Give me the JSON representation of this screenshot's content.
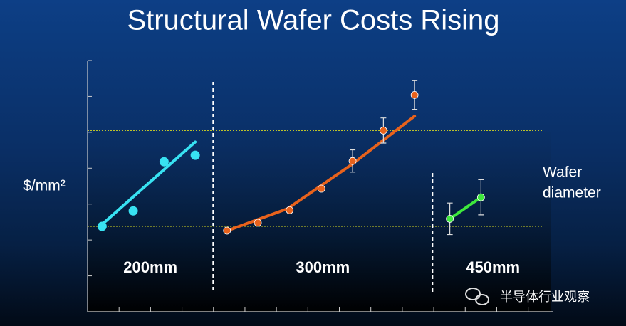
{
  "chart_data": {
    "type": "scatter",
    "title": "Structural Wafer Costs Rising",
    "y_label": "$/mm²",
    "right_label": [
      "Wafer",
      "diameter"
    ],
    "xlim": [
      0,
      14.8
    ],
    "xticks": [
      0,
      1,
      2,
      3,
      4,
      5,
      6,
      7,
      8,
      9,
      10,
      11,
      12,
      13,
      14
    ],
    "ylim": [
      0,
      7
    ],
    "yticks": [
      0,
      1,
      2,
      3,
      4,
      5,
      6,
      7
    ],
    "hlines": {
      "color": "#d8d820",
      "values": [
        5.05,
        2.38
      ]
    },
    "vlines": [
      3.99,
      10.96
    ],
    "series": [
      {
        "name": "200mm",
        "color": "#38e2f2",
        "x": [
          0.46,
          1.45,
          2.43,
          3.42
        ],
        "values": [
          2.38,
          2.81,
          4.18,
          4.36
        ],
        "fit_x": [
          0.39,
          3.42
        ],
        "fit_y": [
          2.38,
          4.73
        ]
      },
      {
        "name": "300mm",
        "color": "#e8621c",
        "x": [
          4.43,
          5.41,
          6.42,
          7.43,
          8.42,
          9.4,
          10.39
        ],
        "values": [
          2.26,
          2.48,
          2.83,
          3.43,
          4.2,
          5.05,
          6.04
        ],
        "errors": [
          null,
          null,
          null,
          null,
          0.31,
          0.35,
          0.4
        ],
        "fit_x": [
          4.38,
          6.35,
          8.42,
          10.39
        ],
        "fit_y": [
          2.24,
          2.87,
          4.12,
          5.45
        ]
      },
      {
        "name": "450mm",
        "color": "#3ee83c",
        "x": [
          11.51,
          12.5
        ],
        "values": [
          2.59,
          3.19
        ],
        "errors": [
          0.44,
          0.49
        ],
        "fit_x": [
          11.51,
          12.5
        ],
        "fit_y": [
          2.59,
          3.19
        ]
      }
    ],
    "watermark": "半导体行业观察"
  }
}
